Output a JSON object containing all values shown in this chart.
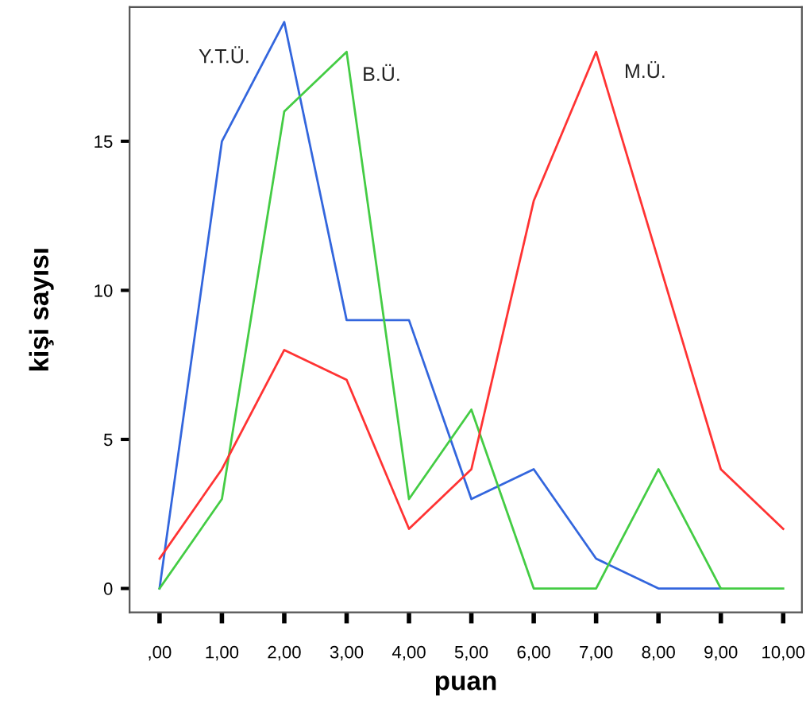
{
  "chart_data": {
    "type": "line",
    "xlabel": "puan",
    "ylabel": "kişi sayısı",
    "categories": [
      ",00",
      "1,00",
      "2,00",
      "3,00",
      "4,00",
      "5,00",
      "6,00",
      "7,00",
      "8,00",
      "9,00",
      "10,00"
    ],
    "series": [
      {
        "name": "Y.T.Ü.",
        "color": "#3366dd",
        "values": [
          0,
          15,
          19,
          9,
          9,
          3,
          4,
          1,
          0,
          0,
          null
        ]
      },
      {
        "name": "B.Ü.",
        "color": "#44cc44",
        "values": [
          0,
          3,
          16,
          18,
          3,
          6,
          0,
          0,
          4,
          0,
          0
        ]
      },
      {
        "name": "M.Ü.",
        "color": "#ff3333",
        "values": [
          1,
          4,
          8,
          7,
          2,
          4,
          13,
          18,
          11,
          4,
          2
        ]
      }
    ],
    "ylim": [
      -0.8,
      19.5
    ],
    "yticks": [
      0,
      5,
      10,
      15
    ],
    "grid": false,
    "legend": false,
    "marker": "none",
    "line_style": "solid"
  }
}
